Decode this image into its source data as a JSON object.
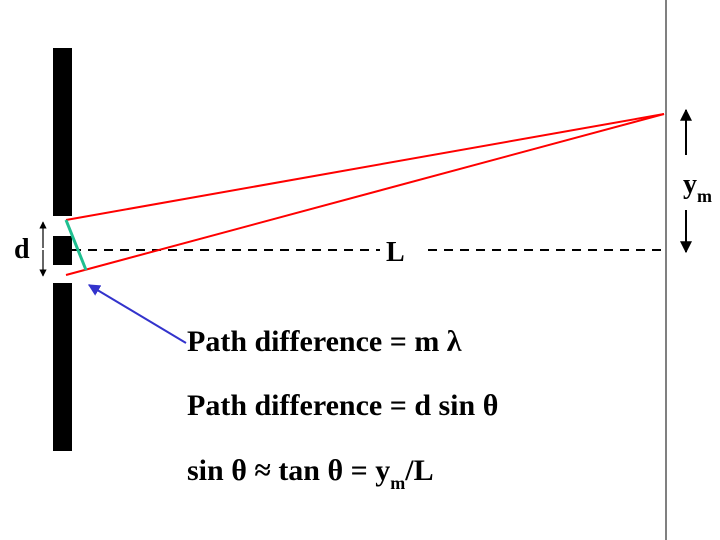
{
  "colors": {
    "barrier": "#000000",
    "rays": "#ff0000",
    "path_segment": "#1fbf90",
    "pointer_arrow": "#3333cc",
    "screen": "#000000"
  },
  "labels": {
    "slit_spacing": "d",
    "distance": "L",
    "ym_main": "y",
    "ym_sub": "m"
  },
  "equations": {
    "eq1": "Path difference = m λ",
    "eq2": "Path difference = d sin θ",
    "eq3_prefix": "sin θ ≈ tan θ = y",
    "eq3_sub": "m",
    "eq3_suffix": "/L"
  }
}
